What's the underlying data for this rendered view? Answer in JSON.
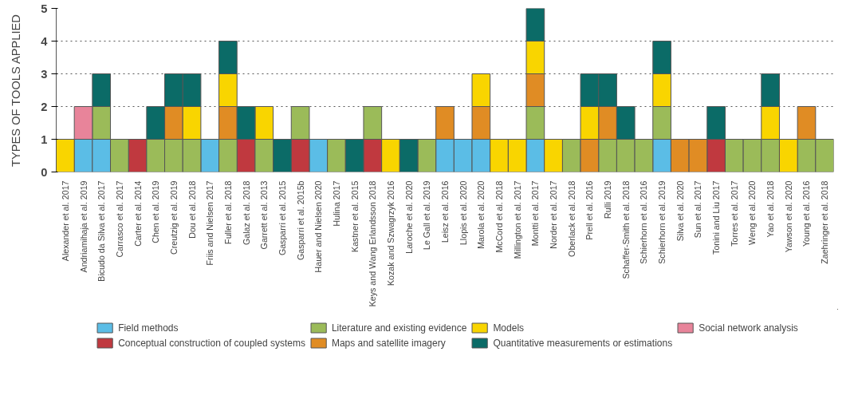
{
  "chart_data": {
    "type": "bar",
    "stacked": true,
    "ylabel": "TYPES OF TOOLS APPLIED",
    "ylim": [
      0,
      5
    ],
    "yticks": [
      0,
      1,
      2,
      3,
      4,
      5
    ],
    "grid": "y",
    "legend": "bottom",
    "categories": [
      "Alexander et al. 2017",
      "Andriamihaja et al. 2019",
      "Bicudo da Silva et al. 2017",
      "Carrasco et al. 2017",
      "Carter et al. 2014",
      "Chen et al. 2019",
      "Creutzig et al. 2019",
      "Dou et al. 2018",
      "Friis and Nielsen 2017",
      "Fuller et al. 2018",
      "Galaz et al. 2018",
      "Garrett et al. 2013",
      "Gasparri et al. 2015",
      "Gasparri et al. 2015b",
      "Hauer and Nielsen 2020",
      "Hulina 2017",
      "Kastner et al. 2015",
      "Keys and Wang Erlandsson 2018",
      "Kozak and Szwagrzyk 2016",
      "Laroche et al. 2020",
      "Le Gall et al. 2019",
      "Leisz et al. 2016",
      "Llopis et al. 2020",
      "Marola et al. 2020",
      "McCord et al. 2018",
      "Millington et al. 2017",
      "Montti et al. 2017",
      "Norder et al. 2017",
      "Oberlack et al. 2018",
      "Prell et al. 2016",
      "Rulli 2019",
      "Schaffer-Smith et al. 2018",
      "Schierhorn et al. 2016",
      "Schierhorn et al. 2019",
      "Silva et al. 2020",
      "Sun et al. 2017",
      "Tonini and Liu 2017",
      "Torres et al. 2017",
      "Weng et al. 2020",
      "Yao et al. 2018",
      "Yawson et al. 2020",
      "Young et al. 2016",
      "Zaehringer et al. 2018"
    ],
    "series": [
      {
        "name": "Field methods",
        "color": "#5bbde6",
        "values": [
          null,
          1,
          1,
          null,
          null,
          null,
          null,
          null,
          1,
          null,
          null,
          null,
          null,
          null,
          1,
          null,
          null,
          null,
          null,
          null,
          null,
          1,
          1,
          1,
          null,
          null,
          1,
          null,
          null,
          null,
          null,
          null,
          null,
          1,
          null,
          null,
          null,
          null,
          null,
          null,
          null,
          null,
          null
        ]
      },
      {
        "name": "Conceptual construction of coupled systems",
        "color": "#c0393f",
        "values": [
          null,
          null,
          null,
          null,
          1,
          null,
          null,
          null,
          null,
          null,
          1,
          null,
          null,
          1,
          null,
          null,
          null,
          1,
          null,
          null,
          null,
          null,
          null,
          null,
          null,
          null,
          null,
          null,
          null,
          null,
          null,
          null,
          null,
          null,
          null,
          null,
          1,
          null,
          null,
          null,
          null,
          null,
          null
        ]
      },
      {
        "name": "Literature and existing evidence",
        "color": "#9bbb59",
        "values": [
          null,
          null,
          1,
          1,
          null,
          1,
          1,
          1,
          null,
          1,
          null,
          1,
          null,
          1,
          null,
          1,
          null,
          1,
          null,
          null,
          1,
          null,
          null,
          null,
          null,
          null,
          1,
          null,
          1,
          null,
          1,
          1,
          1,
          1,
          null,
          null,
          null,
          1,
          1,
          1,
          null,
          1,
          1
        ]
      },
      {
        "name": "Maps and satellite imagery",
        "color": "#e08c24",
        "values": [
          null,
          null,
          null,
          null,
          null,
          null,
          1,
          null,
          null,
          1,
          null,
          null,
          null,
          null,
          null,
          null,
          null,
          null,
          null,
          null,
          null,
          1,
          null,
          1,
          null,
          null,
          1,
          null,
          null,
          1,
          1,
          null,
          null,
          null,
          1,
          1,
          null,
          null,
          null,
          null,
          null,
          1,
          null
        ]
      },
      {
        "name": "Models",
        "color": "#f9d500",
        "values": [
          1,
          null,
          null,
          null,
          null,
          null,
          null,
          1,
          null,
          1,
          null,
          1,
          null,
          null,
          null,
          null,
          null,
          null,
          1,
          null,
          null,
          null,
          null,
          1,
          1,
          1,
          1,
          1,
          null,
          1,
          null,
          null,
          null,
          1,
          null,
          null,
          null,
          null,
          null,
          1,
          1,
          null,
          null
        ]
      },
      {
        "name": "Quantitative measurements or estimations",
        "color": "#0b6b67",
        "values": [
          null,
          null,
          1,
          null,
          null,
          1,
          1,
          1,
          null,
          1,
          1,
          null,
          1,
          null,
          null,
          null,
          1,
          null,
          null,
          1,
          null,
          null,
          null,
          null,
          null,
          null,
          1,
          null,
          null,
          1,
          1,
          1,
          null,
          1,
          null,
          null,
          1,
          null,
          null,
          1,
          null,
          null,
          null
        ]
      },
      {
        "name": "Social network analysis",
        "color": "#e8849a",
        "values": [
          null,
          1,
          null,
          null,
          null,
          null,
          null,
          null,
          null,
          null,
          null,
          null,
          null,
          null,
          null,
          null,
          null,
          null,
          null,
          null,
          null,
          null,
          null,
          null,
          null,
          null,
          null,
          null,
          null,
          null,
          null,
          null,
          null,
          null,
          null,
          null,
          null,
          null,
          null,
          null,
          null,
          null,
          null
        ]
      }
    ]
  }
}
